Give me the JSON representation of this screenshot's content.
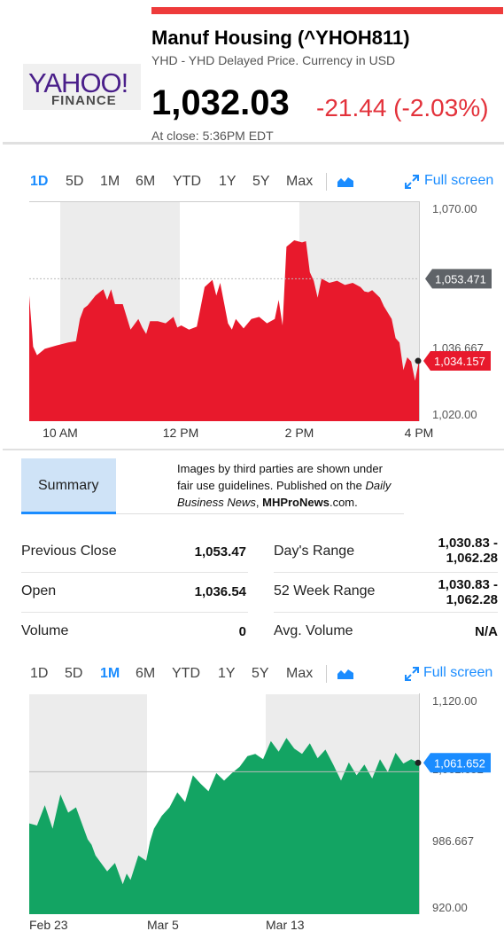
{
  "header": {
    "logo_text": "YAHOO!",
    "logo_sub": "FINANCE",
    "title": "Manuf Housing (^YHOH811)",
    "subtitle": "YHD - YHD Delayed Price. Currency in USD",
    "price": "1,032.03",
    "change": "-21.44 (-2.03%)",
    "close_time": "At close: 5:36PM EDT",
    "colors": {
      "accent_bar": "#ee3b3b",
      "negative": "#e3323b",
      "positive": "#13a463",
      "link": "#1a8cff"
    }
  },
  "chart1_tabs": {
    "ranges": [
      "1D",
      "5D",
      "1M",
      "6M",
      "YTD",
      "1Y",
      "5Y",
      "Max"
    ],
    "active": "1D",
    "chart_type_icon": "area-chart-icon",
    "fullscreen_label": "Full screen"
  },
  "chart2_tabs": {
    "ranges": [
      "1D",
      "5D",
      "1M",
      "6M",
      "YTD",
      "1Y",
      "5Y",
      "Max"
    ],
    "active": "1M",
    "chart_type_icon": "area-chart-icon",
    "fullscreen_label": "Full screen"
  },
  "summary": {
    "tab_label": "Summary",
    "notice_line1": "Images by third parties are shown under",
    "notice_line2": "fair use guidelines.  Published on the ",
    "notice_italic1": "Daily",
    "notice_italic2": "Business News",
    "notice_line3_mid": ", ",
    "notice_bold": "MHProNews",
    "notice_line3_end": ".com.",
    "stats": {
      "previous_close_label": "Previous Close",
      "previous_close_value": "1,053.47",
      "open_label": "Open",
      "open_value": "1,036.54",
      "volume_label": "Volume",
      "volume_value": "0",
      "days_range_label": "Day's Range",
      "days_range_value_1": "1,030.83 -",
      "days_range_value_2": "1,062.28",
      "week52_label": "52 Week Range",
      "week52_value_1": "1,030.83 -",
      "week52_value_2": "1,062.28",
      "avg_volume_label": "Avg. Volume",
      "avg_volume_value": "N/A"
    }
  },
  "chart_data": [
    {
      "type": "area",
      "color": "#e8192c",
      "x_tick_labels": [
        "10 AM",
        "12 PM",
        "2 PM",
        "4 PM"
      ],
      "y_tick_labels": [
        "1,070.00",
        "1,036.667",
        "1,020.00"
      ],
      "ylim": [
        1020,
        1070
      ],
      "previous_close": 1053.471,
      "previous_close_label": "1,053.471",
      "last_value": 1034.157,
      "last_value_label": "1,034.157",
      "x": [
        0,
        1,
        2,
        4,
        7,
        10,
        12,
        13,
        14,
        15,
        17,
        19,
        20,
        21,
        22,
        24,
        26,
        28,
        29,
        30,
        31,
        33,
        35,
        37,
        38,
        39,
        41,
        43,
        45,
        47,
        48,
        49,
        51,
        52,
        53,
        55,
        57,
        59,
        61,
        63,
        64,
        65,
        66,
        68,
        70,
        71,
        72,
        73,
        74,
        75,
        77,
        79,
        81,
        83,
        85,
        86,
        87,
        88,
        90,
        91,
        93,
        94,
        95,
        96,
        97,
        98,
        99,
        100
      ],
      "y": [
        1049.5,
        1037.5,
        1035.5,
        1037.0,
        1037.8,
        1038.5,
        1038.8,
        1044.0,
        1046.5,
        1047.2,
        1049.5,
        1051.0,
        1048.5,
        1051.0,
        1047.5,
        1047.5,
        1041.5,
        1044.0,
        1042.0,
        1040.5,
        1043.5,
        1043.5,
        1043.0,
        1044.5,
        1042.0,
        1042.5,
        1041.5,
        1042.2,
        1051.5,
        1053.2,
        1049.5,
        1052.5,
        1043.0,
        1041.5,
        1044.0,
        1041.8,
        1044.0,
        1044.5,
        1043.0,
        1044.0,
        1048.5,
        1042.5,
        1061.0,
        1062.5,
        1062.0,
        1062.3,
        1055.0,
        1053.0,
        1049.0,
        1053.5,
        1052.5,
        1053.0,
        1052.0,
        1052.5,
        1051.5,
        1050.5,
        1050.3,
        1050.8,
        1049.0,
        1047.0,
        1044.0,
        1039.5,
        1038.5,
        1032.0,
        1035.0,
        1034.0,
        1029.5,
        1034.2
      ]
    },
    {
      "type": "area",
      "color": "#13a463",
      "x_tick_labels": [
        "Feb 23",
        "Mar 5",
        "Mar 13"
      ],
      "y_tick_labels": [
        "1,120.00",
        "1,061.652",
        "986.667",
        "920.00"
      ],
      "ylim": [
        920,
        1120
      ],
      "reference_value": 1053.33,
      "last_value": 1061.652,
      "last_value_label": "1,061.652",
      "x": [
        0,
        2,
        4,
        6,
        8,
        10,
        12,
        14,
        15,
        16,
        17,
        18,
        20,
        22,
        24,
        25,
        26,
        28,
        30,
        31,
        32,
        34,
        36,
        38,
        40,
        42,
        44,
        46,
        48,
        50,
        52,
        54,
        56,
        58,
        60,
        62,
        64,
        66,
        68,
        70,
        72,
        74,
        76,
        78,
        80,
        82,
        84,
        86,
        88,
        90,
        92,
        94,
        96,
        98,
        100
      ],
      "y": [
        1005.0,
        1003.0,
        1022.0,
        1000.0,
        1032.0,
        1015.0,
        1020.0,
        1000.0,
        990.0,
        985.0,
        975.0,
        970.0,
        960.0,
        968.0,
        948.0,
        958.0,
        952.0,
        975.0,
        970.0,
        988.0,
        1000.0,
        1012.0,
        1020.0,
        1034.0,
        1025.0,
        1050.0,
        1042.0,
        1035.0,
        1052.0,
        1045.0,
        1052.0,
        1058.0,
        1068.0,
        1070.0,
        1065.0,
        1082.0,
        1072.0,
        1085.0,
        1075.0,
        1070.0,
        1080.0,
        1066.0,
        1074.0,
        1060.0,
        1045.0,
        1062.0,
        1050.0,
        1060.0,
        1047.0,
        1065.0,
        1053.0,
        1071.0,
        1061.0,
        1065.0,
        1061.652
      ]
    }
  ]
}
